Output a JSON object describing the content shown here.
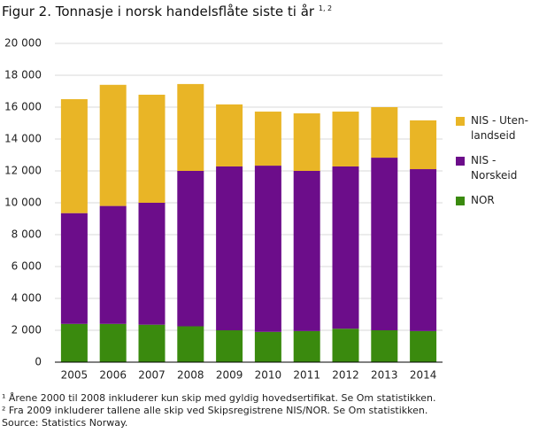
{
  "chart_data": {
    "type": "stacked-bar",
    "title": "Figur 2. Tonnasje i norsk handelsflåte siste ti år",
    "title_superscript": "1, 2",
    "categories": [
      "2005",
      "2006",
      "2007",
      "2008",
      "2009",
      "2010",
      "2011",
      "2012",
      "2013",
      "2014"
    ],
    "series": [
      {
        "name": "NOR",
        "color": "#3a8a0e",
        "values": [
          2400,
          2400,
          2350,
          2250,
          2000,
          1900,
          1950,
          2100,
          2000,
          1950
        ]
      },
      {
        "name": "NIS - Norskeid",
        "color": "#6c0d8a",
        "values": [
          6950,
          7400,
          7650,
          9750,
          10280,
          10430,
          10050,
          10180,
          10830,
          10160
        ]
      },
      {
        "name": "NIS - Uten-landseid",
        "color": "#e9b526",
        "values": [
          7150,
          7600,
          6780,
          5450,
          3890,
          3390,
          3610,
          3440,
          3170,
          3060
        ]
      }
    ],
    "ylim": [
      0,
      20000
    ],
    "yticks": [
      0,
      {
        "value": 2000,
        "label": "2 000"
      },
      {
        "value": 4000,
        "label": "4 000"
      },
      {
        "value": 6000,
        "label": "6 000"
      },
      {
        "value": 8000,
        "label": "8 000"
      },
      {
        "value": 10000,
        "label": "10 000"
      },
      {
        "value": 12000,
        "label": "12 000"
      },
      {
        "value": 14000,
        "label": "14 000"
      },
      {
        "value": 16000,
        "label": "16 000"
      },
      {
        "value": 18000,
        "label": "18 000"
      },
      {
        "value": 20000,
        "label": "20 000"
      }
    ],
    "grid": true,
    "notes": [
      "¹ Årene 2000 til 2008 inkluderer kun skip med gyldig hovedsertifikat. Se Om statistikken.",
      "² Fra 2009 inkluderer tallene alle skip ved Skipsregistrene NIS/NOR. Se Om statistikken.",
      "Source: Statistics Norway."
    ]
  }
}
